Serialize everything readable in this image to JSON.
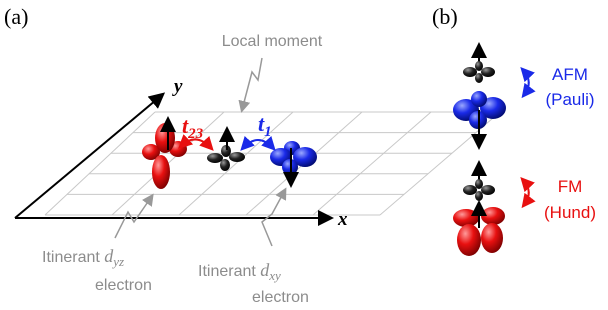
{
  "panels": {
    "a": {
      "label": "(a)",
      "local_moment": "Local moment",
      "y_axis": "y",
      "x_axis": "x",
      "hopping_23": {
        "symbol": "t",
        "subscript": "23"
      },
      "hopping_1": {
        "symbol": "t",
        "subscript": "1"
      },
      "itinerant_yz": {
        "prefix": "Itinerant",
        "orbital": "d",
        "subscript": "yz",
        "suffix": "electron"
      },
      "itinerant_xy": {
        "prefix": "Itinerant",
        "orbital": "d",
        "subscript": "xy",
        "suffix": "electron"
      }
    },
    "b": {
      "label": "(b)",
      "afm": {
        "name": "AFM",
        "note": "(Pauli)"
      },
      "fm": {
        "name": "FM",
        "note": "(Hund)"
      }
    }
  }
}
